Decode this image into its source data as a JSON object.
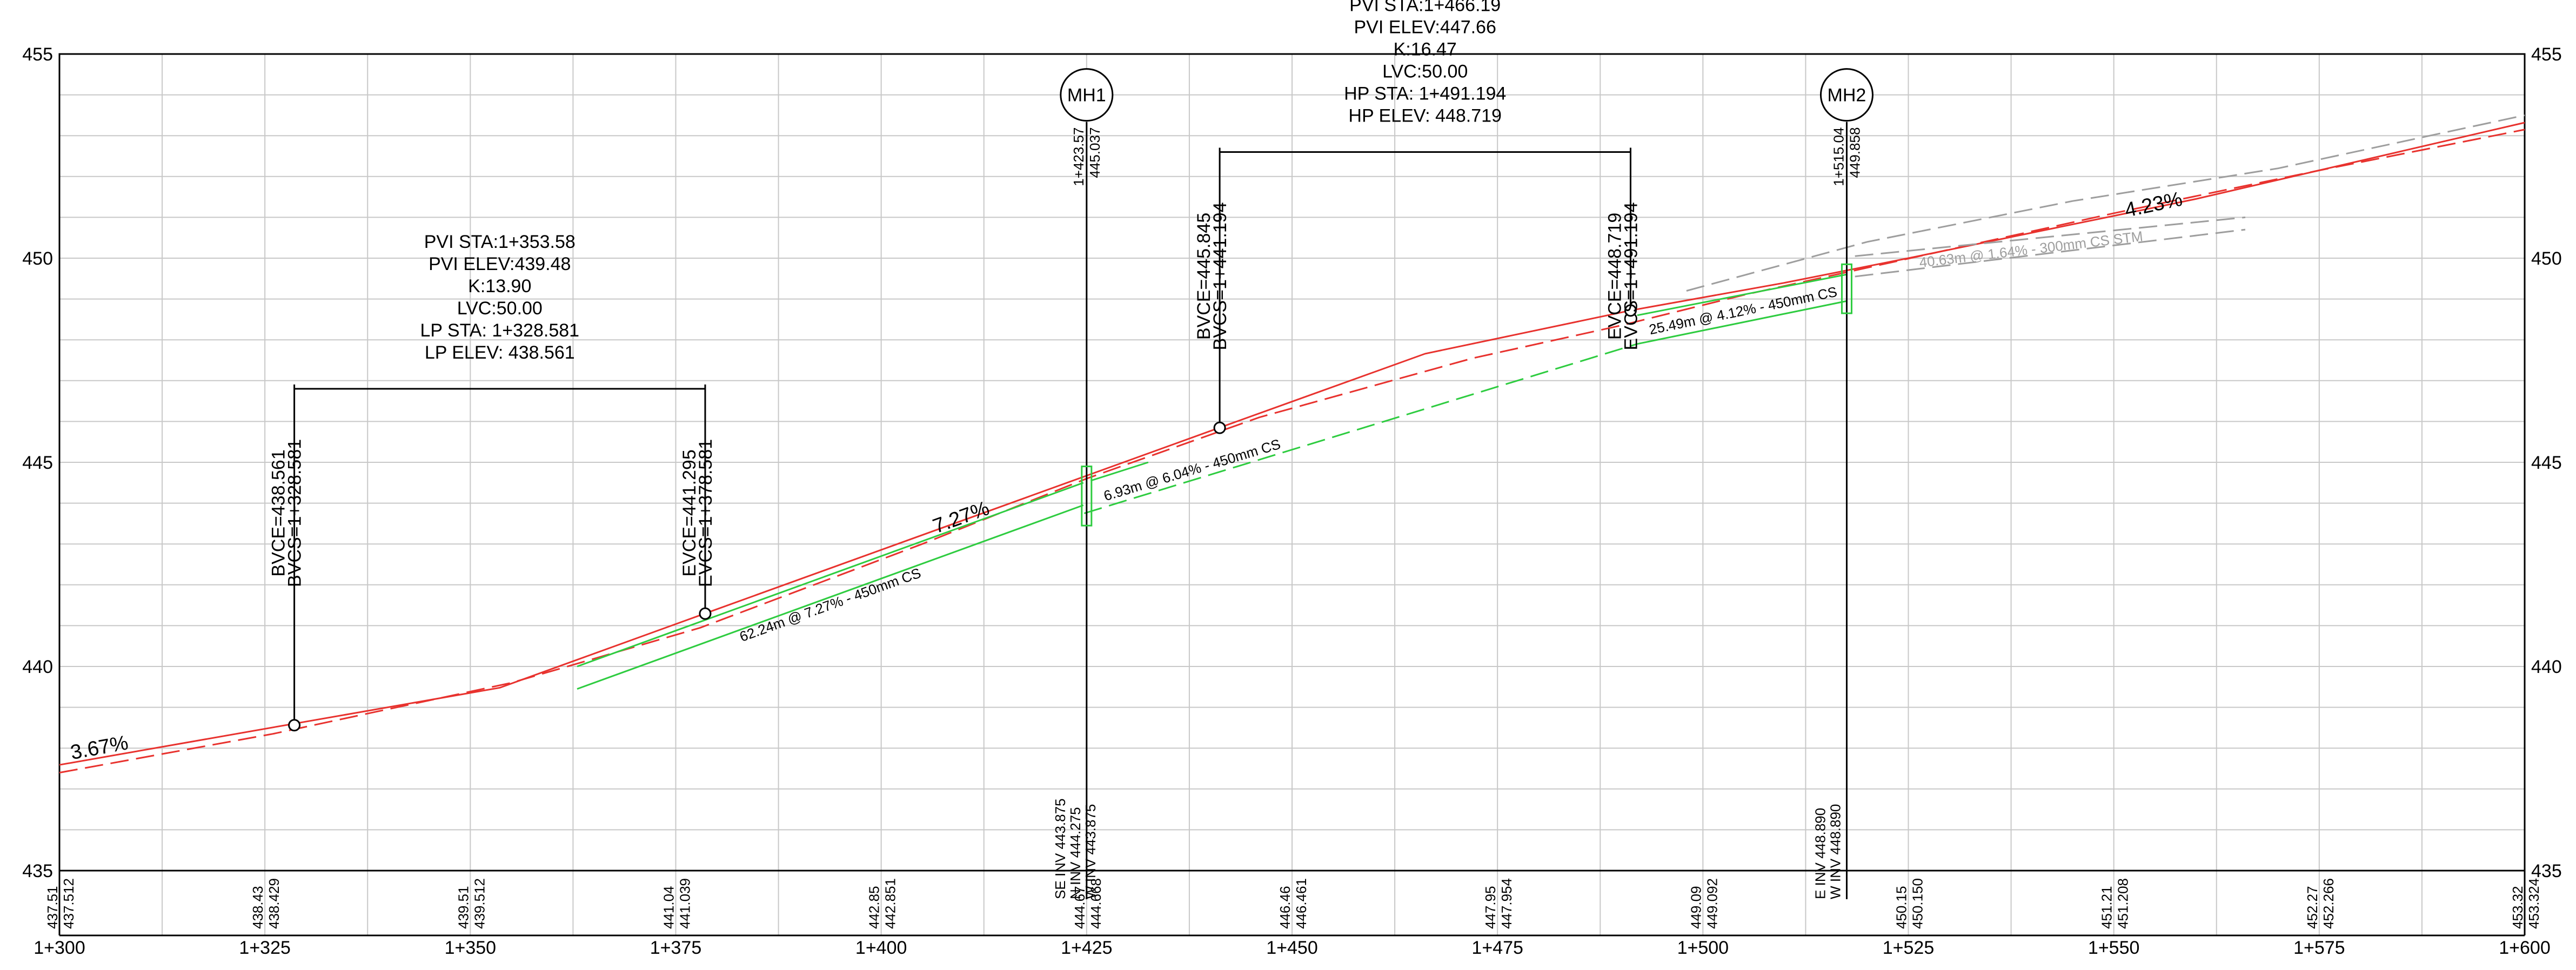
{
  "chart_data": {
    "type": "line",
    "xlim": [
      1300,
      1600
    ],
    "ylim": [
      435,
      455
    ],
    "grid": true,
    "x_ticks": [
      {
        "value": 1300,
        "label": "1+300"
      },
      {
        "value": 1325,
        "label": "1+325"
      },
      {
        "value": 1350,
        "label": "1+350"
      },
      {
        "value": 1375,
        "label": "1+375"
      },
      {
        "value": 1400,
        "label": "1+400"
      },
      {
        "value": 1425,
        "label": "1+425"
      },
      {
        "value": 1450,
        "label": "1+450"
      },
      {
        "value": 1475,
        "label": "1+475"
      },
      {
        "value": 1500,
        "label": "1+500"
      },
      {
        "value": 1525,
        "label": "1+525"
      },
      {
        "value": 1550,
        "label": "1+550"
      },
      {
        "value": 1575,
        "label": "1+575"
      },
      {
        "value": 1600,
        "label": "1+600"
      }
    ],
    "y_ticks": [
      {
        "value": 455,
        "label": "455"
      },
      {
        "value": 450,
        "label": "450"
      },
      {
        "value": 445,
        "label": "445"
      },
      {
        "value": 440,
        "label": "440"
      },
      {
        "value": 435,
        "label": "435"
      }
    ],
    "band_values": [
      {
        "x": 1300,
        "existing": "437.51",
        "proposed": "437.512"
      },
      {
        "x": 1325,
        "existing": "438.43",
        "proposed": "438.429"
      },
      {
        "x": 1350,
        "existing": "439.51",
        "proposed": "439.512"
      },
      {
        "x": 1375,
        "existing": "441.04",
        "proposed": "441.039"
      },
      {
        "x": 1400,
        "existing": "442.85",
        "proposed": "442.851"
      },
      {
        "x": 1425,
        "existing": "444.67",
        "proposed": "444.668"
      },
      {
        "x": 1450,
        "existing": "446.46",
        "proposed": "446.461"
      },
      {
        "x": 1475,
        "existing": "447.95",
        "proposed": "447.954"
      },
      {
        "x": 1500,
        "existing": "449.09",
        "proposed": "449.092"
      },
      {
        "x": 1525,
        "existing": "450.15",
        "proposed": "450.150"
      },
      {
        "x": 1550,
        "existing": "451.21",
        "proposed": "451.208"
      },
      {
        "x": 1575,
        "existing": "452.27",
        "proposed": "452.266"
      },
      {
        "x": 1600,
        "existing": "453.32",
        "proposed": "453.324"
      }
    ],
    "series": [
      {
        "role": "proposed",
        "color": "#e8322e",
        "dashed": false,
        "points": [
          [
            1300,
            437.59
          ],
          [
            1328.6,
            438.6
          ],
          [
            1353.6,
            439.48
          ],
          [
            1378.6,
            441.3
          ],
          [
            1441.2,
            445.85
          ],
          [
            1466.2,
            447.66
          ],
          [
            1491.2,
            448.72
          ],
          [
            1510,
            449.4
          ],
          [
            1525,
            450.0
          ],
          [
            1560,
            451.45
          ],
          [
            1600,
            453.32
          ]
        ]
      },
      {
        "role": "existing",
        "color": "#e8322e",
        "dashed": true,
        "points": [
          [
            1300,
            437.4
          ],
          [
            1326,
            438.35
          ],
          [
            1355,
            439.6
          ],
          [
            1378,
            440.95
          ],
          [
            1405,
            443.0
          ],
          [
            1425,
            444.6
          ],
          [
            1446,
            446.1
          ],
          [
            1472,
            447.55
          ],
          [
            1490,
            448.35
          ],
          [
            1498,
            448.75
          ],
          [
            1505,
            449.1
          ],
          [
            1523,
            449.9
          ],
          [
            1550,
            451.1
          ],
          [
            1575,
            452.15
          ],
          [
            1600,
            453.15
          ]
        ]
      },
      {
        "role": "pipe-62",
        "color": "#2ecc40",
        "dashed": false,
        "points": [
          [
            1363,
            440.0
          ],
          [
            1424.6,
            444.5
          ]
        ]
      },
      {
        "role": "pipe-62-crown",
        "color": "#2ecc40",
        "dashed": false,
        "points": [
          [
            1363,
            439.45
          ],
          [
            1424.6,
            443.95
          ]
        ]
      },
      {
        "role": "pipe-6",
        "color": "#2ecc40",
        "dashed": false,
        "points": [
          [
            1425.5,
            444.55
          ],
          [
            1432.5,
            445.0
          ]
        ]
      },
      {
        "role": "pipe-6-dashed",
        "color": "#2ecc40",
        "dashed": true,
        "points": [
          [
            1424.7,
            443.75
          ],
          [
            1492,
            447.9
          ]
        ]
      },
      {
        "role": "pipe-25",
        "color": "#2ecc40",
        "dashed": false,
        "points": [
          [
            1492,
            448.6
          ],
          [
            1517.5,
            449.6
          ]
        ]
      },
      {
        "role": "pipe-25-crown",
        "color": "#2ecc40",
        "dashed": false,
        "points": [
          [
            1492,
            447.9
          ],
          [
            1517.5,
            448.95
          ]
        ]
      },
      {
        "role": "future-pipe",
        "color": "#9e9e9e",
        "dashed": true,
        "points": [
          [
            1518.5,
            450.05
          ],
          [
            1566,
            451.0
          ]
        ]
      },
      {
        "role": "future-pipe-crown",
        "color": "#9e9e9e",
        "dashed": true,
        "points": [
          [
            1518.5,
            449.55
          ],
          [
            1566,
            450.7
          ]
        ]
      },
      {
        "role": "future-grade",
        "color": "#9e9e9e",
        "dashed": true,
        "points": [
          [
            1498,
            449.2
          ],
          [
            1520,
            450.4
          ],
          [
            1545,
            451.4
          ],
          [
            1570,
            452.2
          ],
          [
            1600,
            453.5
          ]
        ]
      }
    ],
    "grades": [
      {
        "label": "3.67%",
        "x": 1305,
        "y": 437.85,
        "slope": 3.67
      },
      {
        "label": "7.27%",
        "x": 1410,
        "y": 443.5,
        "slope": 7.27
      },
      {
        "label": "4.23%",
        "x": 1555,
        "y": 451.15,
        "slope": 4.23
      }
    ],
    "curves": [
      {
        "text": [
          "PVI STA:1+353.58",
          "PVI ELEV:439.48",
          "K:13.90",
          "LVC:50.00",
          "LP STA: 1+328.581",
          "LP ELEV: 438.561"
        ],
        "text_x": 1353.58,
        "text_top_y": 450.25,
        "bracket_y": 446.8,
        "bvc": {
          "x": 1328.581,
          "y": 438.561,
          "lines": [
            "BVCE=438.561",
            "BVCS=1+328.581"
          ]
        },
        "evc": {
          "x": 1378.581,
          "y": 441.295,
          "lines": [
            "EVCE=441.295",
            "EVCS=1+378.581"
          ]
        }
      },
      {
        "text": [
          "PVI STA:1+466.19",
          "PVI ELEV:447.66",
          "K:16.47",
          "LVC:50.00",
          "HP STA: 1+491.194",
          "HP ELEV: 448.719"
        ],
        "text_x": 1466.19,
        "text_top_y": 456.05,
        "bracket_y": 452.6,
        "bvc": {
          "x": 1441.194,
          "y": 445.845,
          "lines": [
            "BVCE=445.845",
            "BVCS=1+441.194"
          ]
        },
        "evc": {
          "x": 1491.194,
          "y": 448.719,
          "lines": [
            "EVCE=448.719",
            "EVCS=1+491.194"
          ]
        }
      }
    ],
    "structures": [
      {
        "name": "MH1",
        "x": 1425,
        "rim": "445.037",
        "station": "1+423.57",
        "inverts": [
          "SE INV 443.875",
          "N INV 444.275",
          "W INV 443.875"
        ],
        "top_y": 454.0,
        "bottom_y": 434.3
      },
      {
        "name": "MH2",
        "x": 1517.5,
        "rim": "449.858",
        "station": "1+515.04",
        "inverts": [
          "E INV 448.890",
          "W INV 448.890"
        ],
        "top_y": 454.0,
        "bottom_y": 434.3
      }
    ],
    "pipe_labels": [
      {
        "text": "62.24m @ 7.27% - 450mm CS",
        "x": 1394,
        "y": 441.4,
        "slope": 7.27,
        "color": "#000"
      },
      {
        "text": "6.93m @ 6.04% - 450mm CS",
        "x": 1438,
        "y": 444.7,
        "slope": 6.04,
        "color": "#000"
      },
      {
        "text": "25.49m @ 4.12% - 450mm CS",
        "x": 1505,
        "y": 448.6,
        "slope": 4.12,
        "color": "#000"
      },
      {
        "text": "40.63m @ 1.64% - 300mm CS STM",
        "x": 1540,
        "y": 450.1,
        "slope": 2.4,
        "color": "#9e9e9e"
      }
    ]
  }
}
